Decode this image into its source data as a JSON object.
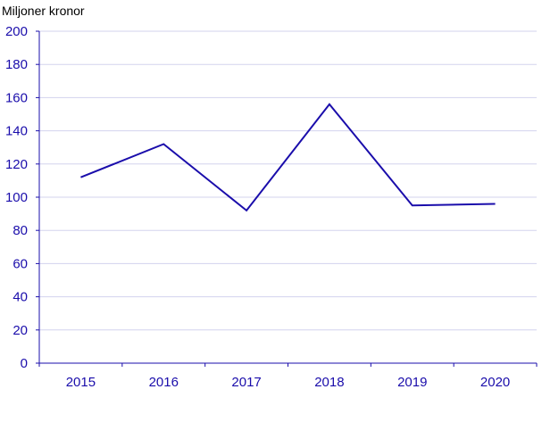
{
  "chart_data": {
    "type": "line",
    "title": "",
    "xlabel": "",
    "ylabel": "Miljoner kronor",
    "categories": [
      "2015",
      "2016",
      "2017",
      "2018",
      "2019",
      "2020"
    ],
    "series": [
      {
        "values": [
          112,
          132,
          92,
          156,
          95,
          96
        ]
      }
    ],
    "ylim": [
      0,
      200
    ],
    "yticks": [
      "0",
      "20",
      "40",
      "60",
      "80",
      "100",
      "120",
      "140",
      "160",
      "180",
      "200"
    ],
    "grid": "horizontal",
    "legend": "none",
    "colors": {
      "line": "#1a0dab",
      "text": "#1a0dab",
      "grid": "#d3d3ee",
      "axis": "#1a0dab"
    }
  }
}
